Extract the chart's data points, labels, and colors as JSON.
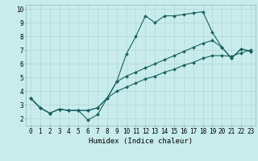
{
  "xlabel": "Humidex (Indice chaleur)",
  "ylabel": "",
  "bg_color": "#c8ecec",
  "grid_color": "#b8d8d8",
  "line_color": "#1a6060",
  "xlim": [
    -0.5,
    23.5
  ],
  "ylim": [
    1.5,
    10.3
  ],
  "xticks": [
    0,
    1,
    2,
    3,
    4,
    5,
    6,
    7,
    8,
    9,
    10,
    11,
    12,
    13,
    14,
    15,
    16,
    17,
    18,
    19,
    20,
    21,
    22,
    23
  ],
  "yticks": [
    2,
    3,
    4,
    5,
    6,
    7,
    8,
    9,
    10
  ],
  "line1_x": [
    0,
    1,
    2,
    3,
    4,
    5,
    6,
    7,
    8,
    9,
    10,
    11,
    12,
    13,
    14,
    15,
    16,
    17,
    18,
    19,
    20,
    21,
    22,
    23
  ],
  "line1_y": [
    3.5,
    2.8,
    2.4,
    2.7,
    2.6,
    2.6,
    1.9,
    2.3,
    3.5,
    4.7,
    6.7,
    8.0,
    9.5,
    9.0,
    9.5,
    9.5,
    9.6,
    9.7,
    9.8,
    8.3,
    7.2,
    6.4,
    7.1,
    6.9
  ],
  "line2_x": [
    0,
    1,
    2,
    3,
    4,
    5,
    6,
    7,
    8,
    9,
    10,
    11,
    12,
    13,
    14,
    15,
    16,
    17,
    18,
    19,
    20,
    21,
    22,
    23
  ],
  "line2_y": [
    3.5,
    2.8,
    2.4,
    2.7,
    2.6,
    2.6,
    2.6,
    2.8,
    3.5,
    4.0,
    4.3,
    4.6,
    4.9,
    5.1,
    5.4,
    5.6,
    5.9,
    6.1,
    6.4,
    6.6,
    6.6,
    6.55,
    6.8,
    7.0
  ],
  "line3_x": [
    0,
    1,
    2,
    3,
    4,
    5,
    6,
    7,
    8,
    9,
    10,
    11,
    12,
    13,
    14,
    15,
    16,
    17,
    18,
    19,
    20,
    21,
    22,
    23
  ],
  "line3_y": [
    3.5,
    2.8,
    2.4,
    2.7,
    2.6,
    2.6,
    2.6,
    2.8,
    3.5,
    4.7,
    5.1,
    5.4,
    5.7,
    6.0,
    6.3,
    6.6,
    6.9,
    7.2,
    7.5,
    7.7,
    7.2,
    6.4,
    7.1,
    6.9
  ]
}
